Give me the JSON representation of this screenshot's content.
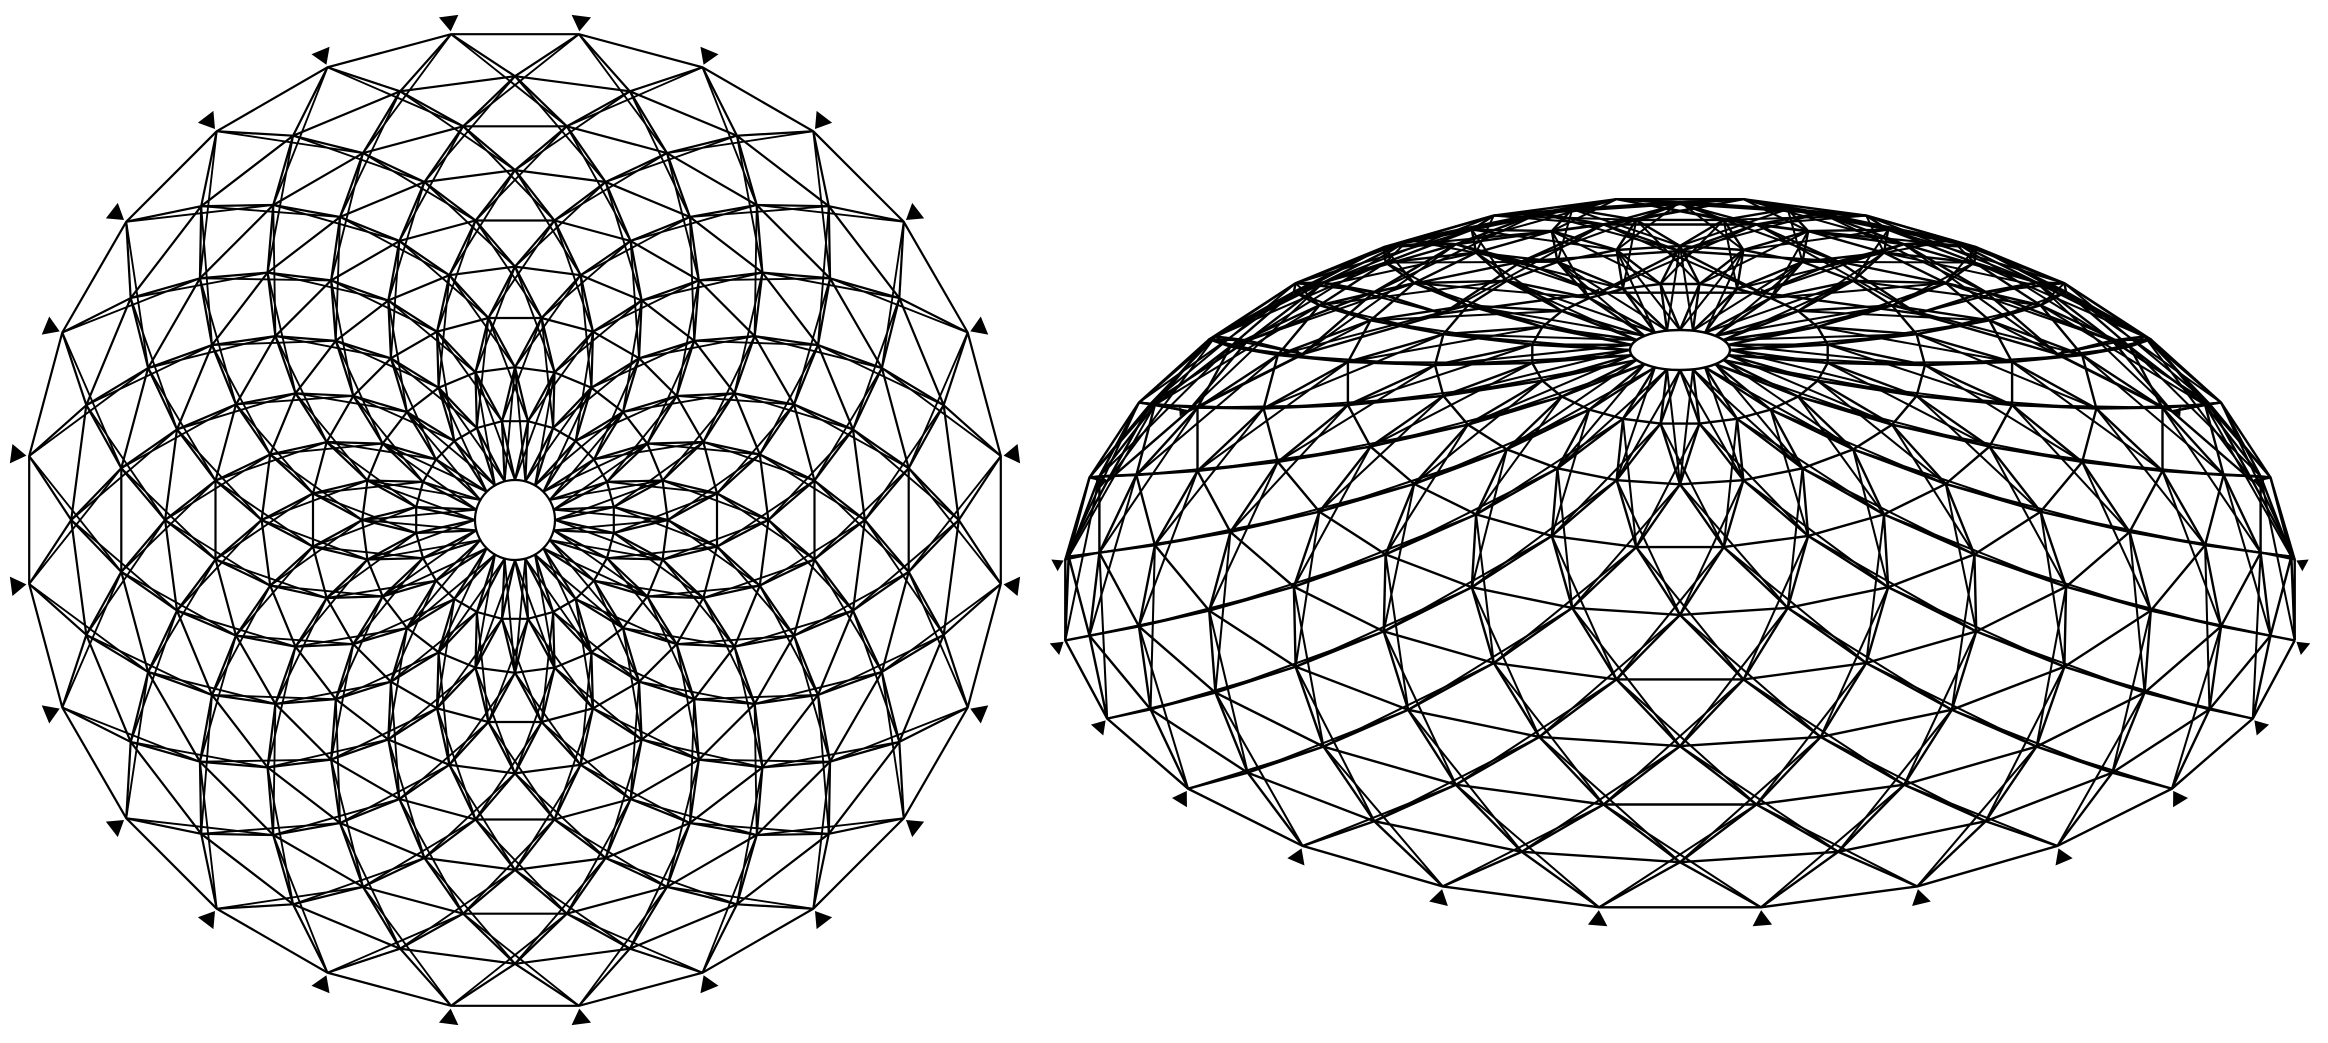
{
  "figure": {
    "background": "#ffffff",
    "stroke_color": "#000000",
    "support_color": "#000000"
  },
  "panels": [
    {
      "view": "plan",
      "structure": "lattice-dome-with-central-opening",
      "sectors": 24,
      "rings": 9,
      "bracing": "diagonal-x",
      "supports": 24,
      "support_symbol": "triangle-icon"
    },
    {
      "view": "perspective",
      "structure": "lattice-dome-with-central-opening",
      "sectors": 24,
      "rings": 9,
      "bracing": "diagonal-x",
      "supports": 24,
      "support_symbol": "triangle-icon"
    }
  ]
}
